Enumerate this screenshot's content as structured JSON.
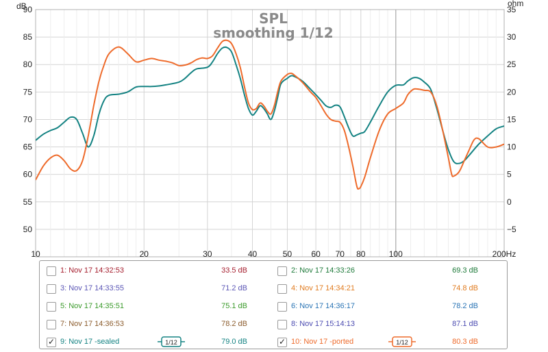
{
  "chart_data": {
    "type": "line",
    "title": "SPL",
    "subtitle": "smoothing 1/12",
    "y_left_unit": "dB",
    "y_right_unit": "ohm",
    "x_unit": "Hz",
    "x_scale": "log",
    "xlim": [
      10,
      200
    ],
    "ylim_left": [
      45,
      90
    ],
    "ylim_right": [
      -10,
      35
    ],
    "grid": true,
    "x_ticks": [
      10,
      20,
      30,
      40,
      50,
      60,
      70,
      80,
      100,
      200
    ],
    "x_tick_labels": [
      "10",
      "20",
      "30",
      "40",
      "50",
      "60",
      "70",
      "80",
      "100",
      "200Hz"
    ],
    "y_left_ticks": [
      50,
      55,
      60,
      65,
      70,
      75,
      80,
      85,
      90
    ],
    "y_left_tick_labels": [
      "50",
      "55",
      "60",
      "65",
      "70",
      "75",
      "80",
      "85",
      "90"
    ],
    "y_right_ticks": [
      -5,
      0,
      5,
      10,
      15,
      20,
      25,
      30,
      35
    ],
    "y_right_tick_labels": [
      "−5",
      "0",
      "5",
      "10",
      "15",
      "20",
      "25",
      "30",
      "35"
    ],
    "series": [
      {
        "name": "9: Nov 17 -sealed",
        "color": "#138282",
        "points": [
          [
            10,
            66.2
          ],
          [
            10.5,
            67.3
          ],
          [
            11,
            68.0
          ],
          [
            11.5,
            68.5
          ],
          [
            12,
            69.5
          ],
          [
            12.5,
            70.4
          ],
          [
            13,
            70.0
          ],
          [
            13.5,
            67.5
          ],
          [
            14,
            65.0
          ],
          [
            14.5,
            67.0
          ],
          [
            15,
            71.0
          ],
          [
            15.5,
            73.5
          ],
          [
            16,
            74.4
          ],
          [
            17,
            74.6
          ],
          [
            18,
            75.0
          ],
          [
            19,
            75.9
          ],
          [
            20,
            76.0
          ],
          [
            21,
            76.0
          ],
          [
            22,
            76.1
          ],
          [
            23,
            76.3
          ],
          [
            25,
            76.8
          ],
          [
            26,
            77.5
          ],
          [
            27,
            78.5
          ],
          [
            28,
            79.2
          ],
          [
            30,
            79.5
          ],
          [
            31,
            80.5
          ],
          [
            32,
            82.0
          ],
          [
            33,
            83.0
          ],
          [
            34,
            83.1
          ],
          [
            35,
            82.3
          ],
          [
            36,
            80.0
          ],
          [
            37,
            77.5
          ],
          [
            38,
            74.5
          ],
          [
            39,
            72.0
          ],
          [
            40,
            70.8
          ],
          [
            41,
            71.5
          ],
          [
            42,
            72.5
          ],
          [
            43,
            72.0
          ],
          [
            44,
            71.0
          ],
          [
            45,
            70.0
          ],
          [
            46,
            71.5
          ],
          [
            47,
            74.0
          ],
          [
            48,
            76.5
          ],
          [
            50,
            77.5
          ],
          [
            51,
            77.9
          ],
          [
            52,
            77.9
          ],
          [
            55,
            77.0
          ],
          [
            58,
            75.5
          ],
          [
            60,
            74.5
          ],
          [
            62,
            73.5
          ],
          [
            64,
            72.5
          ],
          [
            66,
            72.2
          ],
          [
            68,
            72.6
          ],
          [
            70,
            72.3
          ],
          [
            72,
            70.5
          ],
          [
            74,
            68.5
          ],
          [
            76,
            67.0
          ],
          [
            78,
            67.2
          ],
          [
            80,
            67.5
          ],
          [
            82,
            67.8
          ],
          [
            85,
            69.5
          ],
          [
            90,
            72.5
          ],
          [
            95,
            75.0
          ],
          [
            100,
            76.2
          ],
          [
            105,
            76.3
          ],
          [
            108,
            77.0
          ],
          [
            112,
            77.6
          ],
          [
            116,
            77.5
          ],
          [
            120,
            76.8
          ],
          [
            125,
            75.5
          ],
          [
            130,
            72.0
          ],
          [
            135,
            68.0
          ],
          [
            140,
            64.5
          ],
          [
            145,
            62.3
          ],
          [
            150,
            62.0
          ],
          [
            155,
            62.5
          ],
          [
            160,
            63.5
          ],
          [
            170,
            65.5
          ],
          [
            180,
            67.0
          ],
          [
            190,
            68.3
          ],
          [
            200,
            68.8
          ]
        ]
      },
      {
        "name": "10: Nov 17 -ported",
        "color": "#ee6a2a",
        "points": [
          [
            10,
            59.0
          ],
          [
            10.5,
            61.5
          ],
          [
            11,
            63.0
          ],
          [
            11.5,
            63.5
          ],
          [
            12,
            62.5
          ],
          [
            12.5,
            61.0
          ],
          [
            13,
            60.7
          ],
          [
            13.5,
            62.5
          ],
          [
            14,
            67.0
          ],
          [
            14.5,
            72.5
          ],
          [
            15,
            77.0
          ],
          [
            15.5,
            80.0
          ],
          [
            16,
            82.0
          ],
          [
            17,
            83.2
          ],
          [
            18,
            82.0
          ],
          [
            19,
            80.5
          ],
          [
            20,
            80.8
          ],
          [
            21,
            81.1
          ],
          [
            22,
            80.8
          ],
          [
            23,
            80.6
          ],
          [
            24,
            80.3
          ],
          [
            25,
            79.8
          ],
          [
            26,
            79.9
          ],
          [
            27,
            80.3
          ],
          [
            28,
            80.9
          ],
          [
            29,
            81.2
          ],
          [
            30,
            81.1
          ],
          [
            31,
            81.6
          ],
          [
            32,
            83.0
          ],
          [
            33,
            84.2
          ],
          [
            34,
            84.4
          ],
          [
            35,
            83.8
          ],
          [
            36,
            82.0
          ],
          [
            37,
            79.5
          ],
          [
            38,
            76.0
          ],
          [
            39,
            73.0
          ],
          [
            40,
            71.8
          ],
          [
            41,
            72.0
          ],
          [
            42,
            73.0
          ],
          [
            43,
            72.5
          ],
          [
            44,
            71.5
          ],
          [
            45,
            71.0
          ],
          [
            46,
            72.5
          ],
          [
            47,
            75.0
          ],
          [
            48,
            77.0
          ],
          [
            50,
            78.2
          ],
          [
            51,
            78.4
          ],
          [
            52,
            78.2
          ],
          [
            55,
            76.8
          ],
          [
            58,
            75.0
          ],
          [
            60,
            74.0
          ],
          [
            62,
            72.5
          ],
          [
            64,
            71.0
          ],
          [
            66,
            70.0
          ],
          [
            68,
            69.7
          ],
          [
            70,
            69.5
          ],
          [
            72,
            68.0
          ],
          [
            74,
            65.0
          ],
          [
            76,
            61.5
          ],
          [
            78,
            57.8
          ],
          [
            79,
            57.4
          ],
          [
            80,
            57.8
          ],
          [
            82,
            59.5
          ],
          [
            85,
            63.0
          ],
          [
            90,
            68.0
          ],
          [
            95,
            71.0
          ],
          [
            100,
            72.0
          ],
          [
            105,
            73.0
          ],
          [
            108,
            74.5
          ],
          [
            112,
            75.5
          ],
          [
            116,
            75.5
          ],
          [
            120,
            75.3
          ],
          [
            125,
            75.0
          ],
          [
            130,
            72.5
          ],
          [
            135,
            68.0
          ],
          [
            140,
            63.0
          ],
          [
            143,
            60.0
          ],
          [
            145,
            59.7
          ],
          [
            150,
            60.5
          ],
          [
            155,
            62.5
          ],
          [
            160,
            64.5
          ],
          [
            165,
            66.3
          ],
          [
            170,
            66.5
          ],
          [
            180,
            65.0
          ],
          [
            190,
            65.0
          ],
          [
            200,
            65.5
          ]
        ]
      }
    ]
  },
  "legend": [
    {
      "label": "1: Nov 17 14:32:53",
      "value": "33.5 dB",
      "color": "#a51d2d",
      "checked": "",
      "smoothing": ""
    },
    {
      "label": "2: Nov 17 14:33:26",
      "value": "69.3 dB",
      "color": "#1e7a3a",
      "checked": "",
      "smoothing": ""
    },
    {
      "label": "3: Nov 17 14:33:55",
      "value": "71.2 dB",
      "color": "#5a55b5",
      "checked": "",
      "smoothing": ""
    },
    {
      "label": "4: Nov 17 14:34:21",
      "value": "74.8 dB",
      "color": "#e07b1f",
      "checked": "",
      "smoothing": ""
    },
    {
      "label": "5: Nov 17 14:35:51",
      "value": "75.1 dB",
      "color": "#3a9a2a",
      "checked": "",
      "smoothing": ""
    },
    {
      "label": "6: Nov 17 14:36:17",
      "value": "78.2 dB",
      "color": "#2a74b5",
      "checked": "",
      "smoothing": ""
    },
    {
      "label": "7: Nov 17 14:36:53",
      "value": "78.2 dB",
      "color": "#8a5a2a",
      "checked": "",
      "smoothing": ""
    },
    {
      "label": "8: Nov 17 15:14:13",
      "value": "87.1 dB",
      "color": "#4a4ab0",
      "checked": "",
      "smoothing": ""
    },
    {
      "label": "9: Nov 17 -sealed",
      "value": "79.0 dB",
      "color": "#138282",
      "checked": "✓",
      "smoothing": "1/12"
    },
    {
      "label": "10: Nov 17 -ported",
      "value": "80.3 dB",
      "color": "#ee6a2a",
      "checked": "✓",
      "smoothing": "1/12"
    }
  ]
}
